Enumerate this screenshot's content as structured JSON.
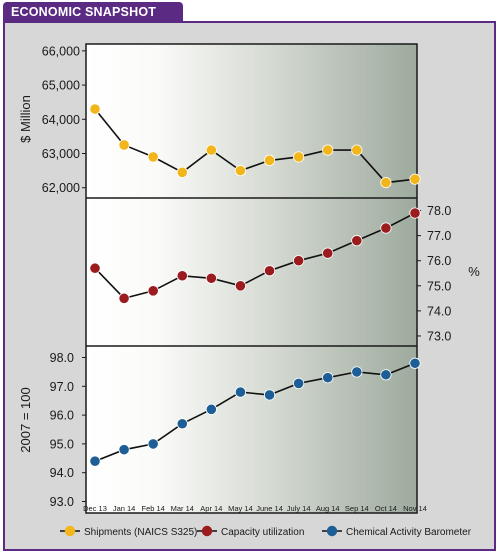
{
  "header": {
    "title": "ECONOMIC SNAPSHOT"
  },
  "chart_data": [
    {
      "type": "line",
      "panel": "top",
      "ylabel": "$ Million",
      "ylim": [
        61700,
        66200
      ],
      "yticks": [
        62000,
        63000,
        64000,
        65000,
        66000
      ],
      "ytick_labels": [
        "62,000",
        "63,000",
        "64,000",
        "65,000",
        "66,000"
      ],
      "categories": [
        "Dec 13",
        "Jan 14",
        "Feb 14",
        "Mar 14",
        "Apr 14",
        "May 14",
        "June 14",
        "July 14",
        "Aug 14",
        "Sep 14",
        "Oct 14",
        "Nov 14"
      ],
      "series": [
        {
          "name": "Shipments (NAICS S325)",
          "color": "#f2b61b",
          "values": [
            64300,
            63250,
            62900,
            62450,
            63100,
            62500,
            62800,
            62900,
            63100,
            63100,
            62150,
            62250
          ]
        }
      ]
    },
    {
      "type": "line",
      "panel": "middle",
      "ylabel": "%",
      "ylim": [
        72.6,
        78.5
      ],
      "yticks": [
        73.0,
        74.0,
        75.0,
        76.0,
        77.0,
        78.0
      ],
      "ytick_labels": [
        "73.0",
        "74.0",
        "75.0",
        "76.0",
        "77.0",
        "78.0"
      ],
      "categories": [
        "Dec 13",
        "Jan 14",
        "Feb 14",
        "Mar 14",
        "Apr 14",
        "May 14",
        "June 14",
        "July 14",
        "Aug 14",
        "Sep 14",
        "Oct 14",
        "Nov 14"
      ],
      "series": [
        {
          "name": "Capacity utilization",
          "color": "#9b1c1f",
          "values": [
            75.7,
            74.5,
            74.8,
            75.4,
            75.3,
            75.0,
            75.6,
            76.0,
            76.3,
            76.8,
            77.3,
            77.9
          ]
        }
      ]
    },
    {
      "type": "line",
      "panel": "bottom",
      "ylabel": "2007 = 100",
      "ylim": [
        92.6,
        98.4
      ],
      "yticks": [
        93.0,
        94.0,
        95.0,
        96.0,
        97.0,
        98.0
      ],
      "ytick_labels": [
        "93.0",
        "94.0",
        "95.0",
        "96.0",
        "97.0",
        "98.0"
      ],
      "xlabels": [
        "Dec 13",
        "Jan 14",
        "Feb 14",
        "Mar 14",
        "Apr 14",
        "May 14",
        "June 14",
        "July 14",
        "Aug 14",
        "Sep 14",
        "Oct 14",
        "Nov 14"
      ],
      "categories": [
        "Dec 13",
        "Jan 14",
        "Feb 14",
        "Mar 14",
        "Apr 14",
        "May 14",
        "June 14",
        "July 14",
        "Aug 14",
        "Sep 14",
        "Oct 14",
        "Nov 14"
      ],
      "series": [
        {
          "name": "Chemical Activity Barometer",
          "color": "#1d5e96",
          "values": [
            94.4,
            94.8,
            95.0,
            95.7,
            96.2,
            96.8,
            96.7,
            97.1,
            97.3,
            97.5,
            97.4,
            97.8
          ]
        }
      ]
    }
  ],
  "legend": [
    {
      "label": "Shipments (NAICS S325)",
      "color": "#f2b61b"
    },
    {
      "label": "Capacity utilization",
      "color": "#9b1c1f"
    },
    {
      "label": "Chemical Activity Barometer",
      "color": "#1d5e96"
    }
  ]
}
